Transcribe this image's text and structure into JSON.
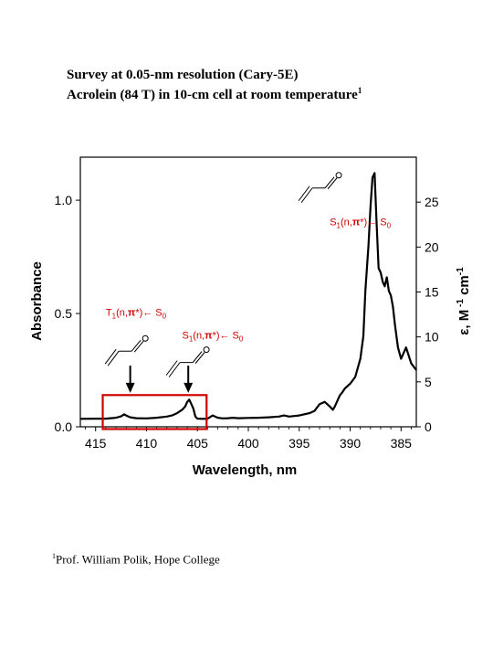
{
  "title": {
    "line1": "Survey at 0.05-nm resolution (Cary-5E)",
    "line2": "Acrolein (84 T) in 10-cm cell at room temperature",
    "line2_sup": "1"
  },
  "footnote": {
    "sup": "1",
    "text": "Prof. William Polik, Hope College"
  },
  "chart_data": {
    "type": "line",
    "xlabel": "Wavelength, nm",
    "ylabel": "Absorbance",
    "y2label_parts": {
      "main": "ε, M",
      "sup1": "-1",
      "mid": "cm",
      "sup2": "-1"
    },
    "xlim": [
      416.5,
      383.5
    ],
    "ylim": [
      0.0,
      1.19
    ],
    "y2lim": [
      0,
      30
    ],
    "x_ticks": [
      "415",
      "410",
      "405",
      "400",
      "395",
      "390",
      "385"
    ],
    "x_tick_values": [
      415,
      410,
      405,
      400,
      395,
      390,
      385
    ],
    "y_ticks": [
      "0.0",
      "0.5",
      "1.0"
    ],
    "y_tick_values": [
      0.0,
      0.5,
      1.0
    ],
    "y2_ticks": [
      "0",
      "5",
      "10",
      "15",
      "20",
      "25"
    ],
    "y2_tick_values": [
      0,
      5,
      10,
      15,
      20,
      25
    ],
    "grid": false,
    "series": [
      {
        "color": "#000000",
        "x": [
          416.5,
          415,
          414,
          413,
          412.5,
          412.2,
          412,
          411.6,
          411,
          410,
          409,
          408,
          407.5,
          407,
          406.5,
          406.2,
          406,
          405.8,
          405.6,
          405.4,
          405.2,
          405,
          404.5,
          404,
          403.5,
          403,
          402.5,
          402,
          401.5,
          401,
          400,
          399,
          398,
          397,
          396.5,
          396,
          395,
          394,
          393.5,
          393,
          392.5,
          392,
          391.7,
          391.5,
          391.2,
          391,
          390.8,
          390.5,
          390,
          389.5,
          389,
          388.7,
          388.5,
          388.2,
          388,
          387.8,
          387.6,
          387.4,
          387.2,
          387,
          386.8,
          386.6,
          386.4,
          386.2,
          386,
          385.8,
          385.6,
          385.3,
          385,
          384.5,
          384,
          383.5
        ],
        "y": [
          0.035,
          0.036,
          0.036,
          0.04,
          0.046,
          0.055,
          0.05,
          0.042,
          0.038,
          0.037,
          0.04,
          0.045,
          0.05,
          0.06,
          0.075,
          0.09,
          0.11,
          0.12,
          0.1,
          0.08,
          0.045,
          0.036,
          0.035,
          0.036,
          0.05,
          0.04,
          0.037,
          0.038,
          0.04,
          0.038,
          0.039,
          0.04,
          0.042,
          0.045,
          0.05,
          0.045,
          0.05,
          0.06,
          0.07,
          0.1,
          0.11,
          0.09,
          0.075,
          0.09,
          0.12,
          0.14,
          0.15,
          0.17,
          0.19,
          0.22,
          0.3,
          0.4,
          0.6,
          0.8,
          0.97,
          1.1,
          1.12,
          0.9,
          0.7,
          0.68,
          0.64,
          0.62,
          0.66,
          0.6,
          0.58,
          0.53,
          0.45,
          0.35,
          0.3,
          0.35,
          0.28,
          0.25
        ]
      }
    ],
    "annotations": [
      {
        "label": "S₁(n,π*)←S₀",
        "parts": [
          "S",
          "1",
          "(n,",
          "π",
          "*)←",
          "S",
          "0"
        ],
        "x": 392.0,
        "y": 0.89,
        "color": "#d00000"
      },
      {
        "label": "T₁(n,π*)←S₀",
        "parts": [
          "T",
          "1",
          "(n,",
          "π",
          "*)←",
          "S",
          "0"
        ],
        "x": 414.0,
        "y": 0.49,
        "color": "#d00000"
      },
      {
        "label": "S₁(n,π*)←S₀",
        "parts": [
          "S",
          "1",
          "(n,",
          "π",
          "*)←",
          "S",
          "0"
        ],
        "x": 406.5,
        "y": 0.39,
        "color": "#d00000"
      }
    ],
    "highlight_box": {
      "x0": 414.3,
      "x1": 404.1,
      "y0": -0.01,
      "y1": 0.14,
      "color": "#d00000"
    },
    "arrows": [
      {
        "x": 411.6,
        "y_from": 0.27,
        "y_to": 0.15
      },
      {
        "x": 405.9,
        "y_from": 0.27,
        "y_to": 0.15
      }
    ],
    "molecules": [
      {
        "x": 393.0,
        "y": 1.07
      },
      {
        "x": 412.0,
        "y": 0.35
      },
      {
        "x": 406.0,
        "y": 0.3
      }
    ],
    "colors": {
      "line": "#000000",
      "annotation": "#d00000"
    }
  }
}
